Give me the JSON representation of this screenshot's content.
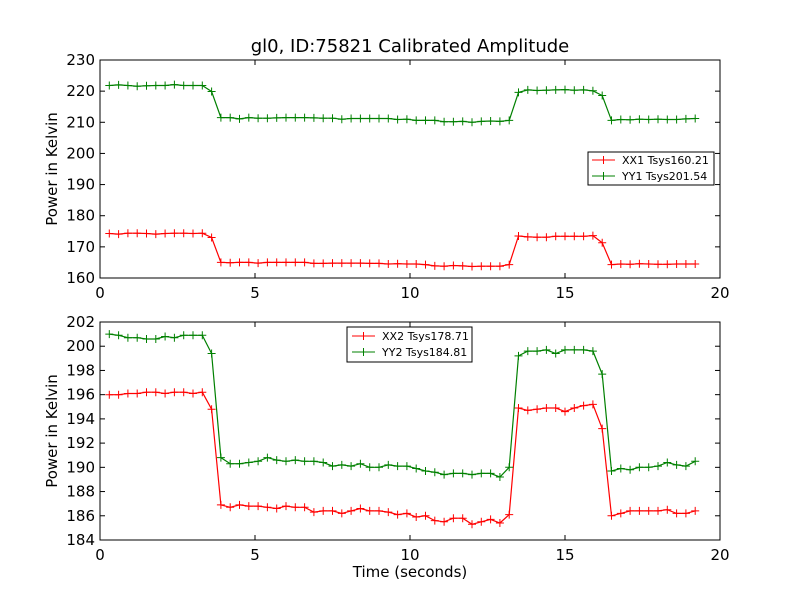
{
  "chart_data": [
    {
      "type": "line",
      "title": "gl0, ID:75821 Calibrated Amplitude",
      "xlabel": "",
      "ylabel": "Power in Kelvin",
      "xlim": [
        0,
        20
      ],
      "ylim": [
        160,
        230
      ],
      "xticks": [
        "0",
        "5",
        "10",
        "15",
        "20"
      ],
      "yticks": [
        "160",
        "170",
        "180",
        "190",
        "200",
        "210",
        "220",
        "230"
      ],
      "xtick_values": [
        0,
        5,
        10,
        15,
        20
      ],
      "ytick_values": [
        160,
        170,
        180,
        190,
        200,
        210,
        220,
        230
      ],
      "grid": false,
      "legend_position": "center-right",
      "x": [
        0.3,
        0.6,
        0.9,
        1.2,
        1.5,
        1.8,
        2.1,
        2.4,
        2.7,
        3.0,
        3.3,
        3.6,
        3.9,
        4.2,
        4.5,
        4.8,
        5.1,
        5.4,
        5.7,
        6.0,
        6.3,
        6.6,
        6.9,
        7.2,
        7.5,
        7.8,
        8.1,
        8.4,
        8.7,
        9.0,
        9.3,
        9.6,
        9.9,
        10.2,
        10.5,
        10.8,
        11.1,
        11.4,
        11.7,
        12.0,
        12.3,
        12.6,
        12.9,
        13.2,
        13.5,
        13.8,
        14.1,
        14.4,
        14.7,
        15.0,
        15.3,
        15.6,
        15.9,
        16.2,
        16.5,
        16.8,
        17.1,
        17.4,
        17.7,
        18.0,
        18.3,
        18.6,
        18.9,
        19.2
      ],
      "series": [
        {
          "name": "XX1 Tsys160.21",
          "color": "#ff0000",
          "values": [
            174.3,
            174.1,
            174.4,
            174.4,
            174.3,
            174.1,
            174.3,
            174.4,
            174.4,
            174.3,
            174.4,
            173.0,
            165.0,
            164.9,
            165.0,
            165.0,
            164.8,
            165.0,
            165.0,
            165.0,
            165.0,
            165.0,
            164.7,
            164.7,
            164.8,
            164.8,
            164.8,
            164.8,
            164.7,
            164.7,
            164.5,
            164.6,
            164.5,
            164.5,
            164.3,
            163.9,
            163.8,
            164.0,
            163.9,
            163.7,
            163.8,
            163.8,
            163.8,
            164.3,
            173.5,
            173.2,
            173.1,
            173.1,
            173.4,
            173.4,
            173.4,
            173.4,
            173.6,
            171.3,
            164.3,
            164.5,
            164.4,
            164.6,
            164.5,
            164.4,
            164.4,
            164.5,
            164.5,
            164.5
          ]
        },
        {
          "name": "YY1 Tsys201.54",
          "color": "#008000",
          "values": [
            221.8,
            222.0,
            221.8,
            221.6,
            221.7,
            221.8,
            221.8,
            222.1,
            221.8,
            221.8,
            221.8,
            219.9,
            211.5,
            211.5,
            211.1,
            211.5,
            211.3,
            211.3,
            211.4,
            211.5,
            211.5,
            211.5,
            211.4,
            211.3,
            211.3,
            211.0,
            211.2,
            211.2,
            211.2,
            211.2,
            211.2,
            210.9,
            211.0,
            210.6,
            210.6,
            210.6,
            210.2,
            210.2,
            210.3,
            210.0,
            210.3,
            210.4,
            210.3,
            210.6,
            219.6,
            220.4,
            220.2,
            220.3,
            220.4,
            220.5,
            220.3,
            220.4,
            220.1,
            218.6,
            210.6,
            210.9,
            210.8,
            211.0,
            210.9,
            211.0,
            210.9,
            210.9,
            211.1,
            211.2
          ]
        }
      ]
    },
    {
      "type": "line",
      "title": "",
      "xlabel": "Time (seconds)",
      "ylabel": "Power in Kelvin",
      "xlim": [
        0,
        20
      ],
      "ylim": [
        184,
        202
      ],
      "xticks": [
        "0",
        "5",
        "10",
        "15",
        "20"
      ],
      "yticks": [
        "184",
        "186",
        "188",
        "190",
        "192",
        "194",
        "196",
        "198",
        "200",
        "202"
      ],
      "xtick_values": [
        0,
        5,
        10,
        15,
        20
      ],
      "ytick_values": [
        184,
        186,
        188,
        190,
        192,
        194,
        196,
        198,
        200,
        202
      ],
      "grid": false,
      "legend_position": "top-center",
      "x": [
        0.3,
        0.6,
        0.9,
        1.2,
        1.5,
        1.8,
        2.1,
        2.4,
        2.7,
        3.0,
        3.3,
        3.6,
        3.9,
        4.2,
        4.5,
        4.8,
        5.1,
        5.4,
        5.7,
        6.0,
        6.3,
        6.6,
        6.9,
        7.2,
        7.5,
        7.8,
        8.1,
        8.4,
        8.7,
        9.0,
        9.3,
        9.6,
        9.9,
        10.2,
        10.5,
        10.8,
        11.1,
        11.4,
        11.7,
        12.0,
        12.3,
        12.6,
        12.9,
        13.2,
        13.5,
        13.8,
        14.1,
        14.4,
        14.7,
        15.0,
        15.3,
        15.6,
        15.9,
        16.2,
        16.5,
        16.8,
        17.1,
        17.4,
        17.7,
        18.0,
        18.3,
        18.6,
        18.9,
        19.2
      ],
      "series": [
        {
          "name": "XX2 Tsys178.71",
          "color": "#ff0000",
          "values": [
            196.0,
            196.0,
            196.1,
            196.1,
            196.2,
            196.2,
            196.1,
            196.2,
            196.2,
            196.1,
            196.2,
            194.8,
            186.9,
            186.7,
            186.9,
            186.8,
            186.8,
            186.7,
            186.6,
            186.8,
            186.7,
            186.7,
            186.3,
            186.4,
            186.4,
            186.2,
            186.4,
            186.6,
            186.4,
            186.4,
            186.3,
            186.1,
            186.2,
            185.9,
            186.0,
            185.6,
            185.5,
            185.8,
            185.8,
            185.3,
            185.5,
            185.7,
            185.4,
            186.1,
            194.9,
            194.7,
            194.8,
            194.9,
            194.9,
            194.6,
            194.9,
            195.1,
            195.2,
            193.2,
            186.0,
            186.2,
            186.4,
            186.4,
            186.4,
            186.4,
            186.5,
            186.2,
            186.2,
            186.4
          ]
        },
        {
          "name": "YY2 Tsys184.81",
          "color": "#008000",
          "values": [
            201.0,
            200.9,
            200.7,
            200.7,
            200.6,
            200.6,
            200.8,
            200.7,
            200.9,
            200.9,
            200.9,
            199.4,
            190.8,
            190.3,
            190.3,
            190.4,
            190.5,
            190.8,
            190.6,
            190.5,
            190.6,
            190.5,
            190.5,
            190.4,
            190.1,
            190.2,
            190.1,
            190.3,
            190.0,
            190.0,
            190.2,
            190.1,
            190.1,
            189.9,
            189.7,
            189.6,
            189.4,
            189.5,
            189.5,
            189.4,
            189.5,
            189.5,
            189.2,
            190.0,
            199.2,
            199.6,
            199.6,
            199.7,
            199.4,
            199.7,
            199.7,
            199.7,
            199.6,
            197.7,
            189.7,
            189.9,
            189.8,
            190.0,
            190.0,
            190.1,
            190.4,
            190.2,
            190.1,
            190.5
          ]
        }
      ]
    }
  ]
}
